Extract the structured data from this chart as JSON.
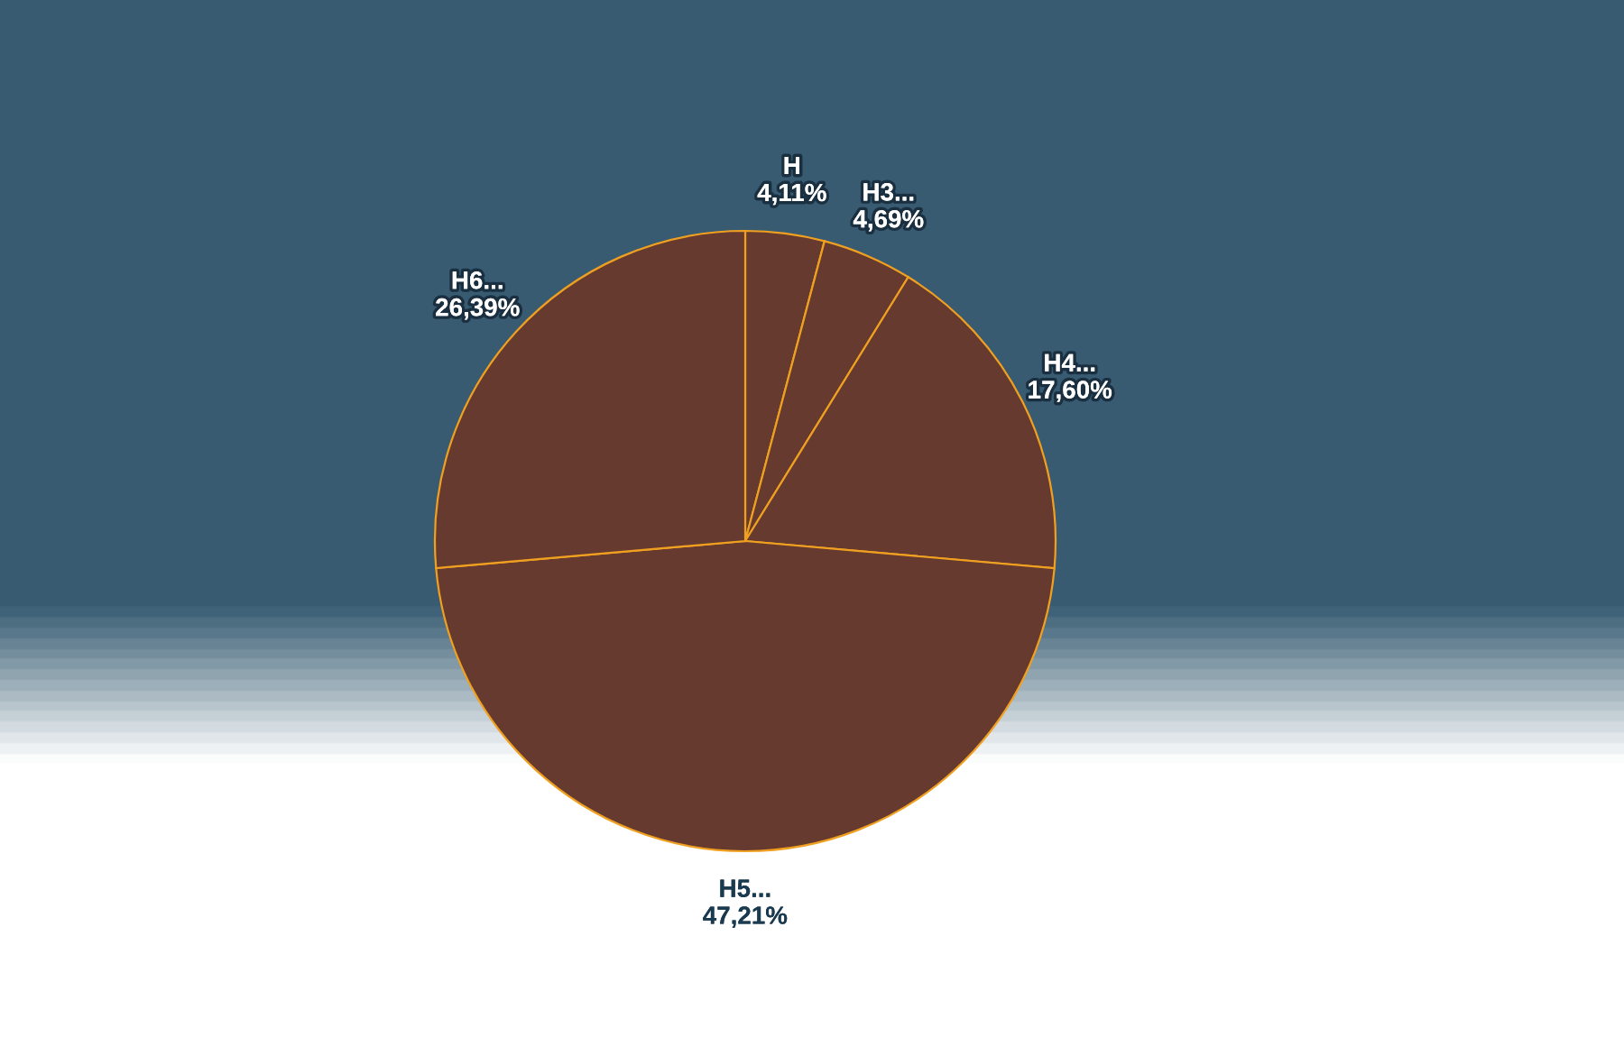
{
  "chart_data": {
    "type": "pie",
    "categories": [
      "H",
      "H3...",
      "H4...",
      "H5...",
      "H6..."
    ],
    "values": [
      4.11,
      4.69,
      17.6,
      47.21,
      26.39
    ],
    "value_labels": [
      "4,11%",
      "4,69%",
      "17,60%",
      "47,21%",
      "26,39%"
    ],
    "colors": [
      "#663a2e",
      "#663a2e",
      "#663a2e",
      "#663a2e",
      "#663a2e"
    ],
    "legend": false
  }
}
